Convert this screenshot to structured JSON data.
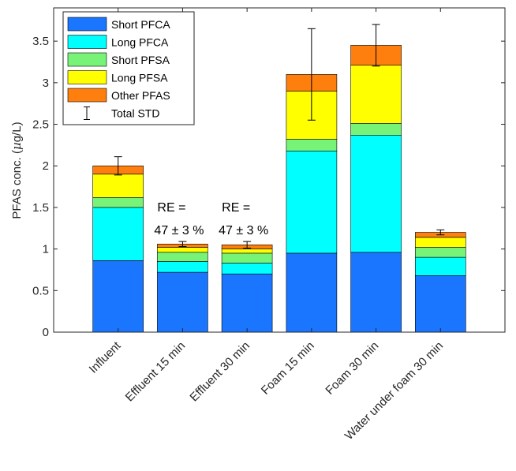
{
  "chart_data": {
    "type": "bar",
    "stacked": true,
    "ylabel": "PFAS conc. (µg/L)",
    "ylabel_prefix": "PFAS conc. (",
    "ylabel_unit_mu": "µ",
    "ylabel_unit_rest": "g/L)",
    "xlabel": "",
    "ylim": [
      0,
      3.9
    ],
    "yticks": [
      0,
      0.5,
      1,
      1.5,
      2,
      2.5,
      3,
      3.5
    ],
    "ytick_labels": [
      "0",
      "0.5",
      "1",
      "1.5",
      "2",
      "2.5",
      "3",
      "3.5"
    ],
    "categories": [
      "Influent",
      "Effluent 15 min",
      "Effluent 30 min",
      "Foam 15 min",
      "Foam 30 min",
      "Water under foam 30 min"
    ],
    "series": [
      {
        "name": "Short PFCA",
        "color": "#1a75ff",
        "values": [
          0.86,
          0.72,
          0.7,
          0.95,
          0.96,
          0.68
        ]
      },
      {
        "name": "Long PFCA",
        "color": "#00ffff",
        "values": [
          0.64,
          0.13,
          0.13,
          1.23,
          1.41,
          0.22
        ]
      },
      {
        "name": "Short PFSA",
        "color": "#77f477",
        "values": [
          0.12,
          0.11,
          0.12,
          0.14,
          0.14,
          0.12
        ]
      },
      {
        "name": "Long PFSA",
        "color": "#ffff00",
        "values": [
          0.28,
          0.06,
          0.05,
          0.58,
          0.7,
          0.12
        ]
      },
      {
        "name": "Other PFAS",
        "color": "#ff7f0e",
        "values": [
          0.1,
          0.04,
          0.05,
          0.2,
          0.24,
          0.06
        ]
      }
    ],
    "error_bars": {
      "name": "Total STD",
      "totals": [
        2.0,
        1.06,
        1.05,
        3.1,
        3.45,
        1.2
      ],
      "std": [
        0.11,
        0.03,
        0.04,
        0.55,
        0.25,
        0.03
      ]
    },
    "annotations": [
      {
        "category": "Effluent 15 min",
        "lines": [
          "RE =",
          "47 ± 3 %"
        ]
      },
      {
        "category": "Effluent 30 min",
        "lines": [
          "RE =",
          "47 ± 3 %"
        ]
      }
    ],
    "grid": false,
    "legend_position": "top-left"
  }
}
